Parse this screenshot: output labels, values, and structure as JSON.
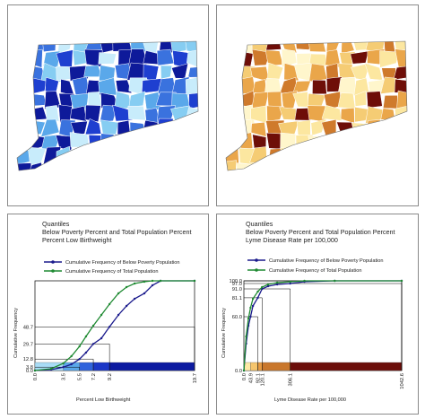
{
  "maps": {
    "poverty": {
      "fills": [
        "#c8ecfb",
        "#86cdf2",
        "#5aa8ea",
        "#3a72de",
        "#1e3fd0",
        "#0e1a9a"
      ]
    },
    "lyme": {
      "fills": [
        "#fff6cc",
        "#fce7a0",
        "#f5cc74",
        "#eaa64a",
        "#cf7a2c",
        "#6e0e08"
      ]
    }
  },
  "chart_data": [
    {
      "type": "line",
      "header": "Quantiles",
      "title": "Below Poverty Percent and Total Population Percent",
      "subtitle": "Percent Low Birthweight",
      "ylabel": "Cumulative Frequency",
      "xlabel": "Percent Low Birthweight",
      "xlim": [
        0,
        19.7
      ],
      "ylim": [
        0,
        100
      ],
      "x_ticks": [
        "0.0",
        "3.5",
        "5.5",
        "7.2",
        "9.2",
        "19.7"
      ],
      "x_tick_values": [
        0,
        3.5,
        5.5,
        7.2,
        9.2,
        19.7
      ],
      "y_ticks": [
        "0.0",
        "3.8",
        "12.8",
        "29.7",
        "48.7"
      ],
      "y_tick_values": [
        0,
        3.8,
        12.8,
        29.7,
        48.7
      ],
      "quantile_colors": [
        "#a8dcf6",
        "#5aa8ea",
        "#2f63dc",
        "#1b37c7",
        "#0c1aa0"
      ],
      "legend_colors": {
        "poverty": "#1a1a8c",
        "total": "#1f8a32"
      },
      "series": [
        {
          "name": "Cumulative Frequency of Below Poverty Population",
          "color": "#1a1a8c",
          "x": [
            0,
            2,
            3.5,
            4.5,
            5.5,
            6.3,
            7.2,
            8.2,
            9.2,
            10.3,
            11.3,
            12.3,
            13.5,
            14.5,
            15.5,
            19.7
          ],
          "y": [
            0,
            1,
            3.8,
            7,
            12.8,
            20,
            29.7,
            36,
            48.7,
            62,
            72,
            80,
            86,
            95,
            100,
            100
          ]
        },
        {
          "name": "Cumulative Frequency of Total Population",
          "color": "#1f8a32",
          "x": [
            0,
            2,
            3.5,
            4.5,
            5.5,
            6.3,
            7.2,
            8.2,
            9.2,
            10.3,
            11.3,
            12.3,
            13.5,
            14.5,
            15.5,
            19.7
          ],
          "y": [
            0,
            2,
            8,
            16,
            27,
            38,
            50,
            62,
            74,
            86,
            93,
            97,
            99,
            100,
            100,
            100
          ]
        }
      ]
    },
    {
      "type": "line",
      "header": "Quantiles",
      "title": "Below Poverty Percent and Total Population Percent",
      "subtitle": "Lyme Disease Rate per 100,000",
      "ylabel": "Cumulative Frequency",
      "xlabel": "Lyme Disease Rate per 100,000",
      "xlim": [
        0,
        1042.6
      ],
      "ylim": [
        0,
        100
      ],
      "x_ticks": [
        "0.0",
        "43.9",
        "92.1",
        "120.1",
        "306.1",
        "1042.6"
      ],
      "x_tick_values": [
        0,
        43.9,
        92.1,
        120.1,
        306.1,
        1042.6
      ],
      "y_ticks": [
        "0.0",
        "60.0",
        "81.1",
        "91.0",
        "97.0",
        "100.0"
      ],
      "y_tick_values": [
        0,
        60.0,
        81.1,
        91.0,
        97.0,
        100.0
      ],
      "quantile_colors": [
        "#fde9a4",
        "#f5c56d",
        "#e69a42",
        "#c9772c",
        "#6b0e0a"
      ],
      "legend_colors": {
        "poverty": "#1a1a8c",
        "total": "#1f8a32"
      },
      "series": [
        {
          "name": "Cumulative Frequency of Below Poverty Population",
          "color": "#1a1a8c",
          "x": [
            0,
            15,
            30,
            43.9,
            60,
            92.1,
            120.1,
            160,
            220,
            306.1,
            400,
            600,
            1042.6
          ],
          "y": [
            0,
            30,
            50,
            60,
            72,
            81.1,
            91.0,
            94,
            96,
            97.0,
            99,
            100,
            100
          ]
        },
        {
          "name": "Cumulative Frequency of Total Population",
          "color": "#1f8a32",
          "x": [
            0,
            15,
            30,
            43.9,
            60,
            92.1,
            120.1,
            160,
            220,
            306.1,
            400,
            600,
            1042.6
          ],
          "y": [
            0,
            38,
            58,
            70,
            80,
            88,
            93,
            96,
            98,
            99,
            100,
            100,
            100
          ]
        }
      ]
    }
  ]
}
